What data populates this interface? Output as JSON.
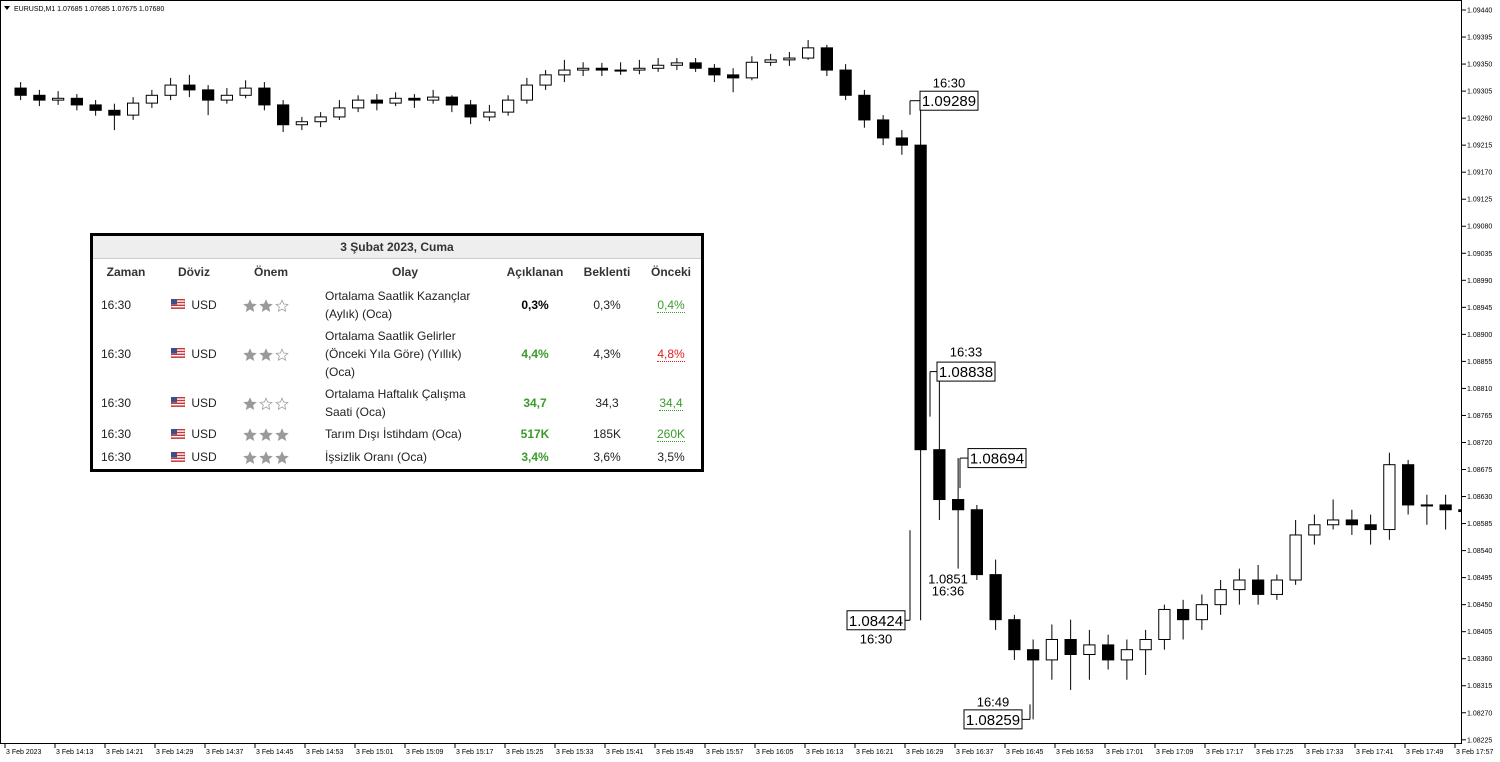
{
  "chart_data": {
    "type": "candlestick",
    "title": "EURUSD,M1  1.07685 1.07685 1.07675 1.07680",
    "x": [
      "14:06",
      "14:09",
      "14:12",
      "14:15",
      "14:18",
      "14:21",
      "14:24",
      "14:27",
      "14:30",
      "14:33",
      "14:36",
      "14:39",
      "14:42",
      "14:45",
      "14:48",
      "14:51",
      "14:54",
      "14:57",
      "15:00",
      "15:03",
      "15:06",
      "15:09",
      "15:12",
      "15:15",
      "15:18",
      "15:21",
      "15:24",
      "15:27",
      "15:30",
      "15:33",
      "15:36",
      "15:39",
      "15:42",
      "15:45",
      "15:48",
      "15:51",
      "15:54",
      "15:57",
      "16:00",
      "16:03",
      "16:06",
      "16:09",
      "16:12",
      "16:15",
      "16:18",
      "16:21",
      "16:24",
      "16:27",
      "16:30",
      "16:33",
      "16:36",
      "16:39",
      "16:42",
      "16:45",
      "16:48",
      "16:51",
      "16:54",
      "16:57",
      "17:00",
      "17:03",
      "17:06",
      "17:09",
      "17:12",
      "17:15",
      "17:18",
      "17:21",
      "17:24",
      "17:27",
      "17:30",
      "17:33",
      "17:36",
      "17:39",
      "17:42",
      "17:45",
      "17:48",
      "17:51",
      "17:54",
      "17:57"
    ],
    "open": [
      1.0931,
      1.09298,
      1.0929,
      1.09293,
      1.09282,
      1.09273,
      1.09265,
      1.09285,
      1.09298,
      1.09315,
      1.09307,
      1.0929,
      1.09298,
      1.0931,
      1.09282,
      1.09249,
      1.09254,
      1.09262,
      1.09277,
      1.0929,
      1.09285,
      1.09293,
      1.0929,
      1.09295,
      1.09282,
      1.09262,
      1.0927,
      1.0929,
      1.09315,
      1.09332,
      1.0934,
      1.09343,
      1.0934,
      1.0934,
      1.09343,
      1.09348,
      1.09352,
      1.09343,
      1.09332,
      1.09327,
      1.09353,
      1.09357,
      1.0936,
      1.09377,
      1.0934,
      1.09298,
      1.09257,
      1.09227,
      1.09215,
      1.08708,
      1.08625,
      1.08608,
      1.085,
      1.08425,
      1.08375,
      1.08358,
      1.08392,
      1.08367,
      1.08383,
      1.08358,
      1.08375,
      1.08392,
      1.08442,
      1.08425,
      1.0845,
      1.08475,
      1.08491,
      1.08467,
      1.08491,
      1.08566,
      1.08583,
      1.08591,
      1.08583,
      1.08575,
      1.08683,
      1.08616,
      1.08616,
      1.08608
    ],
    "high": [
      1.0932,
      1.09307,
      1.09305,
      1.093,
      1.0929,
      1.09284,
      1.09295,
      1.09307,
      1.09327,
      1.09332,
      1.09315,
      1.0931,
      1.09323,
      1.0932,
      1.0929,
      1.09262,
      1.0927,
      1.0929,
      1.09298,
      1.093,
      1.09303,
      1.093,
      1.09307,
      1.09298,
      1.0929,
      1.09282,
      1.09298,
      1.09327,
      1.0934,
      1.09357,
      1.09353,
      1.09352,
      1.09353,
      1.09357,
      1.0936,
      1.0936,
      1.0936,
      1.0935,
      1.09343,
      1.09363,
      1.09367,
      1.0937,
      1.0939,
      1.09382,
      1.0935,
      1.09307,
      1.09265,
      1.0924,
      1.09289,
      1.08838,
      1.08694,
      1.08616,
      1.08525,
      1.08433,
      1.08392,
      1.08417,
      1.08425,
      1.08408,
      1.084,
      1.08392,
      1.08408,
      1.0845,
      1.08458,
      1.08467,
      1.08491,
      1.0851,
      1.08516,
      1.085,
      1.08591,
      1.086,
      1.08625,
      1.08608,
      1.086,
      1.08703,
      1.08691,
      1.08633,
      1.08633,
      1.08625
    ],
    "low": [
      1.0929,
      1.0928,
      1.09282,
      1.09273,
      1.09264,
      1.0924,
      1.09257,
      1.09277,
      1.0929,
      1.09295,
      1.09265,
      1.09284,
      1.09293,
      1.09273,
      1.09237,
      1.0924,
      1.09245,
      1.09257,
      1.0927,
      1.09273,
      1.0928,
      1.09277,
      1.09284,
      1.0927,
      1.0925,
      1.09255,
      1.09264,
      1.09284,
      1.09307,
      1.0932,
      1.0933,
      1.0933,
      1.09332,
      1.09333,
      1.09337,
      1.0934,
      1.09337,
      1.0932,
      1.09303,
      1.09323,
      1.09347,
      1.09347,
      1.09357,
      1.0933,
      1.0929,
      1.09244,
      1.09215,
      1.09199,
      1.08424,
      1.08591,
      1.0851,
      1.08491,
      1.08408,
      1.08358,
      1.08259,
      1.08325,
      1.08308,
      1.08325,
      1.08342,
      1.08325,
      1.08333,
      1.08375,
      1.08392,
      1.08408,
      1.08433,
      1.0845,
      1.0845,
      1.08458,
      1.08483,
      1.0855,
      1.08575,
      1.08566,
      1.0855,
      1.08558,
      1.086,
      1.08583,
      1.08575,
      1.08591
    ],
    "close": [
      1.09298,
      1.0929,
      1.09293,
      1.09282,
      1.09273,
      1.09265,
      1.09285,
      1.09298,
      1.09315,
      1.09307,
      1.0929,
      1.09298,
      1.0931,
      1.09282,
      1.09249,
      1.09254,
      1.09262,
      1.09277,
      1.0929,
      1.09285,
      1.09293,
      1.0929,
      1.09295,
      1.09282,
      1.09262,
      1.0927,
      1.0929,
      1.09315,
      1.09332,
      1.0934,
      1.09343,
      1.0934,
      1.0934,
      1.09343,
      1.09348,
      1.09352,
      1.09343,
      1.09332,
      1.09327,
      1.09353,
      1.09357,
      1.0936,
      1.09377,
      1.0934,
      1.09298,
      1.09257,
      1.09227,
      1.09215,
      1.08708,
      1.08625,
      1.08608,
      1.085,
      1.08425,
      1.08375,
      1.08358,
      1.08392,
      1.08367,
      1.08383,
      1.08358,
      1.08375,
      1.08392,
      1.08442,
      1.08425,
      1.0845,
      1.08475,
      1.08491,
      1.08467,
      1.08491,
      1.08566,
      1.08583,
      1.08591,
      1.08583,
      1.08575,
      1.08683,
      1.08616,
      1.08616,
      1.08608,
      1.08605
    ],
    "up_color": "#ffffff",
    "down_color": "#000000",
    "outline_color": "#000000",
    "xlim": [
      "14:04",
      "17:59"
    ],
    "xticks": [
      {
        "value": "14:05",
        "label": "3 Feb 2023"
      },
      {
        "value": "14:13",
        "label": "3 Feb 14:13"
      },
      {
        "value": "14:21",
        "label": "3 Feb 14:21"
      },
      {
        "value": "14:29",
        "label": "3 Feb 14:29"
      },
      {
        "value": "14:37",
        "label": "3 Feb 14:37"
      },
      {
        "value": "14:45",
        "label": "3 Feb 14:45"
      },
      {
        "value": "14:53",
        "label": "3 Feb 14:53"
      },
      {
        "value": "15:01",
        "label": "3 Feb 15:01"
      },
      {
        "value": "15:09",
        "label": "3 Feb 15:09"
      },
      {
        "value": "15:17",
        "label": "3 Feb 15:17"
      },
      {
        "value": "15:25",
        "label": "3 Feb 15:25"
      },
      {
        "value": "15:33",
        "label": "3 Feb 15:33"
      },
      {
        "value": "15:41",
        "label": "3 Feb 15:41"
      },
      {
        "value": "15:49",
        "label": "3 Feb 15:49"
      },
      {
        "value": "15:57",
        "label": "3 Feb 15:57"
      },
      {
        "value": "16:05",
        "label": "3 Feb 16:05"
      },
      {
        "value": "16:13",
        "label": "3 Feb 16:13"
      },
      {
        "value": "16:21",
        "label": "3 Feb 16:21"
      },
      {
        "value": "16:29",
        "label": "3 Feb 16:29"
      },
      {
        "value": "16:37",
        "label": "3 Feb 16:37"
      },
      {
        "value": "16:45",
        "label": "3 Feb 16:45"
      },
      {
        "value": "16:53",
        "label": "3 Feb 16:53"
      },
      {
        "value": "17:01",
        "label": "3 Feb 17:01"
      },
      {
        "value": "17:09",
        "label": "3 Feb 17:09"
      },
      {
        "value": "17:17",
        "label": "3 Feb 17:17"
      },
      {
        "value": "17:25",
        "label": "3 Feb 17:25"
      },
      {
        "value": "17:33",
        "label": "3 Feb 17:33"
      },
      {
        "value": "17:41",
        "label": "3 Feb 17:41"
      },
      {
        "value": "17:49",
        "label": "3 Feb 17:49"
      },
      {
        "value": "17:57",
        "label": "3 Feb 17:57"
      }
    ],
    "ylim": [
      1.08218,
      1.0945
    ],
    "yticks": [
      {
        "value": 1.0944,
        "label": "1.09440"
      },
      1.09395,
      {
        "value": 1.0935,
        "label": "1.09350"
      },
      1.09305,
      {
        "value": 1.0926,
        "label": "1.09260"
      },
      1.09215,
      {
        "value": 1.0917,
        "label": "1.09170"
      },
      1.09125,
      {
        "value": 1.0908,
        "label": "1.09080"
      },
      1.09035,
      {
        "value": 1.0899,
        "label": "1.08990"
      },
      1.08945,
      {
        "value": 1.089,
        "label": "1.08900"
      },
      1.08855,
      {
        "value": 1.0881,
        "label": "1.08810"
      },
      1.08765,
      {
        "value": 1.0872,
        "label": "1.08720"
      },
      1.08675,
      {
        "value": 1.0863,
        "label": "1.08630"
      },
      1.08585,
      {
        "value": 1.0854,
        "label": "1.08540"
      },
      1.08495,
      {
        "value": 1.0845,
        "label": "1.08450"
      },
      1.08405,
      {
        "value": 1.0836,
        "label": "1.08360"
      },
      1.08315,
      {
        "value": 1.0827,
        "label": "1.08270"
      },
      1.08225
    ],
    "annotations": [
      {
        "time": "16:30",
        "price": 1.09289
      },
      {
        "time": "16:33",
        "price": 1.08838
      },
      {
        "price": 1.08694
      },
      {
        "price": 1.0851,
        "time": "16:36"
      },
      {
        "price": 1.08424,
        "time": "16:30"
      },
      {
        "time": "16:49",
        "price": 1.08259
      }
    ]
  },
  "calendar": {
    "title": "3 Şubat 2023, Cuma",
    "headers": [
      "Zaman",
      "Döviz",
      "Önem",
      "Olay",
      "Açıklanan",
      "Beklenti",
      "Önceki"
    ],
    "rows": [
      {
        "time": "16:30",
        "currency": "USD",
        "importance": 2,
        "event": "Ortalama Saatlik Kazançlar (Aylık) (Oca)",
        "actual": "0,3%",
        "forecast": "0,3%",
        "previous": "0,4%",
        "actual_color": "#000000",
        "previous_color": "#3a9b2a"
      },
      {
        "time": "16:30",
        "currency": "USD",
        "importance": 2,
        "event": "Ortalama Saatlik Gelirler (Önceki Yıla Göre) (Yıllık) (Oca)",
        "actual": "4,4%",
        "forecast": "4,3%",
        "previous": "4,8%",
        "actual_color": "#3a9b2a",
        "previous_color": "#e0201c"
      },
      {
        "time": "16:30",
        "currency": "USD",
        "importance": 1,
        "event": "Ortalama Haftalık Çalışma Saati (Oca)",
        "actual": "34,7",
        "forecast": "34,3",
        "previous": "34,4",
        "actual_color": "#3a9b2a",
        "previous_color": "#3a9b2a"
      },
      {
        "time": "16:30",
        "currency": "USD",
        "importance": 3,
        "event": "Tarım Dışı İstihdam (Oca)",
        "actual": "517K",
        "forecast": "185K",
        "previous": "260K",
        "actual_color": "#3a9b2a",
        "previous_color": "#3a9b2a"
      },
      {
        "time": "16:30",
        "currency": "USD",
        "importance": 3,
        "event": "İşsizlik Oranı (Oca)",
        "actual": "3,4%",
        "forecast": "3,6%",
        "previous": "3,5%",
        "actual_color": "#3a9b2a"
      }
    ]
  }
}
